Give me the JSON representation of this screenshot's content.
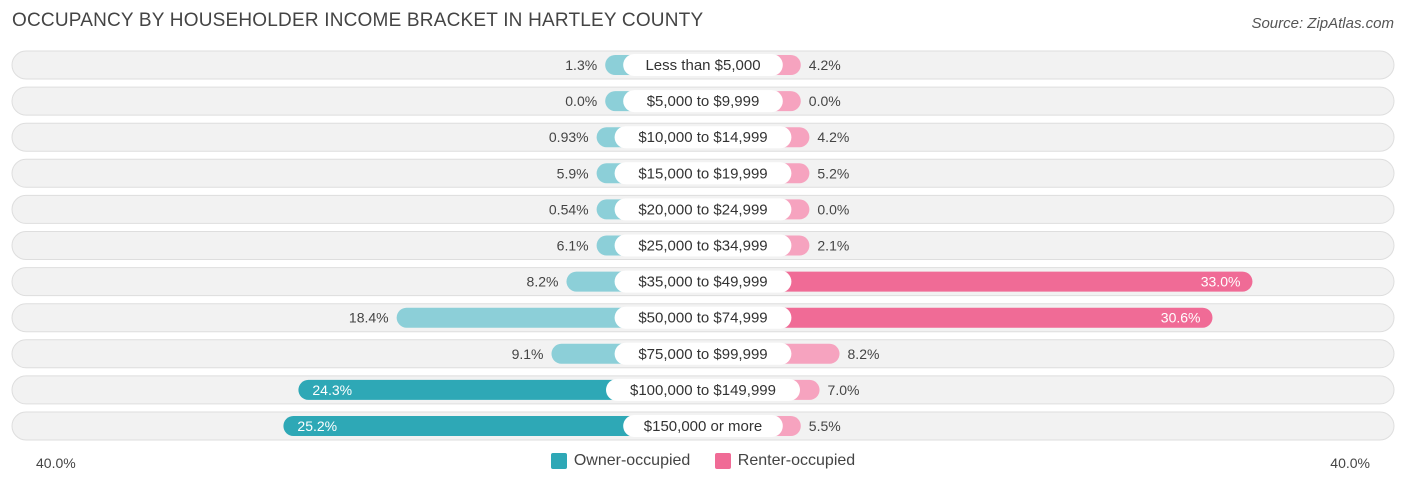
{
  "title": "OCCUPANCY BY HOUSEHOLDER INCOME BRACKET IN HARTLEY COUNTY",
  "source": "Source: ZipAtlas.com",
  "axis": {
    "left_label": "40.0%",
    "right_label": "40.0%"
  },
  "legend": {
    "owner": "Owner-occupied",
    "renter": "Renter-occupied"
  },
  "colors": {
    "owner_light": "#8ccfd8",
    "owner_dark": "#2ea8b6",
    "renter_light": "#f6a3bf",
    "renter_dark": "#f06b96",
    "row_bg": "#f2f2f2",
    "row_border": "#dedede"
  },
  "chart_data": {
    "type": "bar",
    "orientation": "horizontal-diverging",
    "title": "OCCUPANCY BY HOUSEHOLDER INCOME BRACKET IN HARTLEY COUNTY",
    "xlim": [
      -40,
      40
    ],
    "categories": [
      "Less than $5,000",
      "$5,000 to $9,999",
      "$10,000 to $14,999",
      "$15,000 to $19,999",
      "$20,000 to $24,999",
      "$25,000 to $34,999",
      "$35,000 to $49,999",
      "$50,000 to $74,999",
      "$75,000 to $99,999",
      "$100,000 to $149,999",
      "$150,000 or more"
    ],
    "series": [
      {
        "name": "Owner-occupied",
        "side": "left",
        "values": [
          1.3,
          0.0,
          0.93,
          5.9,
          0.54,
          6.1,
          8.2,
          18.4,
          9.1,
          24.3,
          25.2
        ],
        "labels": [
          "1.3%",
          "0.0%",
          "0.93%",
          "5.9%",
          "0.54%",
          "6.1%",
          "8.2%",
          "18.4%",
          "9.1%",
          "24.3%",
          "25.2%"
        ]
      },
      {
        "name": "Renter-occupied",
        "side": "right",
        "values": [
          4.2,
          0.0,
          4.2,
          5.2,
          0.0,
          2.1,
          33.0,
          30.6,
          8.2,
          7.0,
          5.5
        ],
        "labels": [
          "4.2%",
          "0.0%",
          "4.2%",
          "5.2%",
          "0.0%",
          "2.1%",
          "33.0%",
          "30.6%",
          "8.2%",
          "7.0%",
          "5.5%"
        ]
      }
    ]
  }
}
